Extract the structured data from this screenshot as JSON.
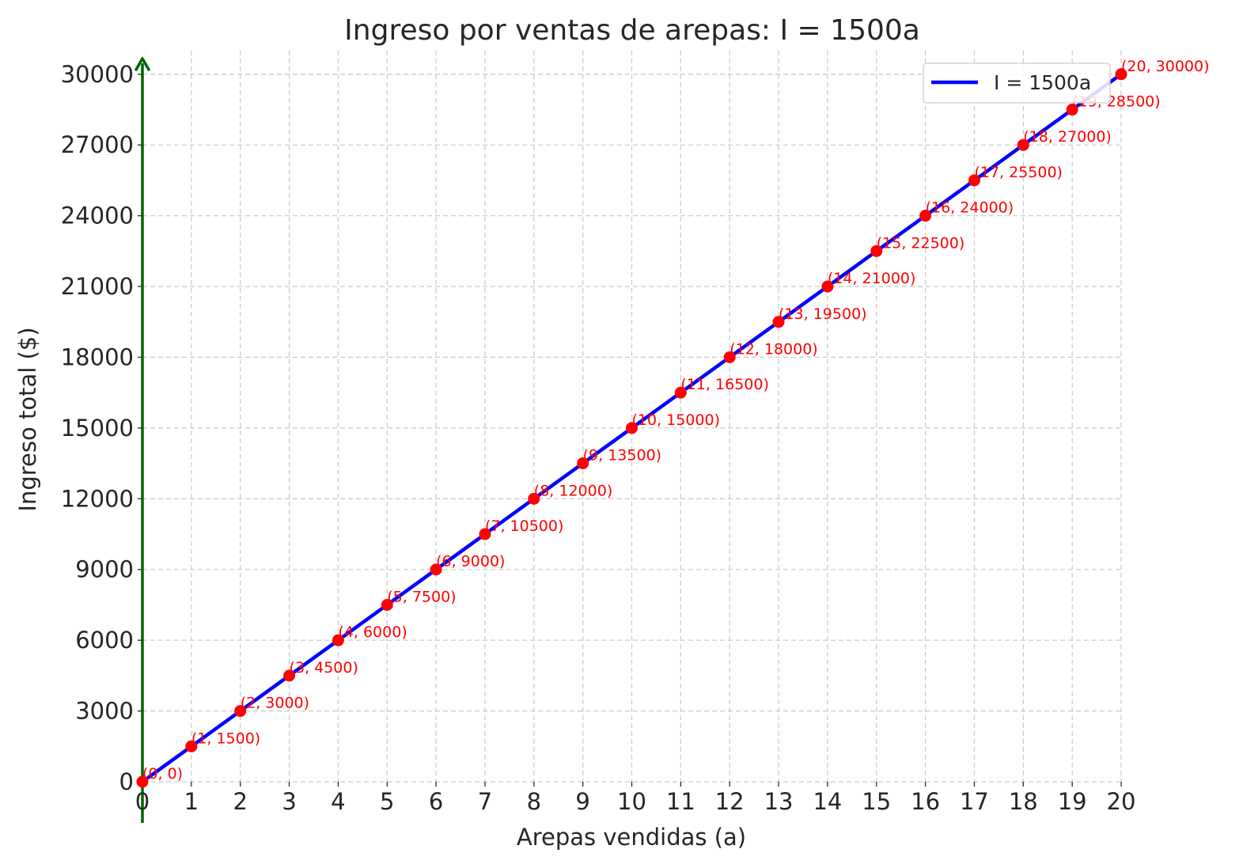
{
  "chart_data": {
    "type": "line",
    "title": "Ingreso por ventas de arepas: I = 1500a",
    "xlabel": "Arepas vendidas (a)",
    "ylabel": "Ingreso total ($)",
    "xlim": [
      0,
      20
    ],
    "ylim": [
      0,
      31000
    ],
    "xticks": [
      0,
      1,
      2,
      3,
      4,
      5,
      6,
      7,
      8,
      9,
      10,
      11,
      12,
      13,
      14,
      15,
      16,
      17,
      18,
      19,
      20
    ],
    "yticks": [
      0,
      3000,
      6000,
      9000,
      12000,
      15000,
      18000,
      21000,
      24000,
      27000,
      30000
    ],
    "grid": true,
    "legend_position": "top-right",
    "series": [
      {
        "name": "I = 1500a",
        "color": "#0000ff",
        "x": [
          0,
          1,
          2,
          3,
          4,
          5,
          6,
          7,
          8,
          9,
          10,
          11,
          12,
          13,
          14,
          15,
          16,
          17,
          18,
          19,
          20
        ],
        "y": [
          0,
          1500,
          3000,
          4500,
          6000,
          7500,
          9000,
          10500,
          12000,
          13500,
          15000,
          16500,
          18000,
          19500,
          21000,
          22500,
          24000,
          25500,
          27000,
          28500,
          30000
        ]
      }
    ],
    "markers": {
      "color": "#ff0000"
    },
    "point_labels": [
      "(0, 0)",
      "(1, 1500)",
      "(2, 3000)",
      "(3, 4500)",
      "(4, 6000)",
      "(5, 7500)",
      "(6, 9000)",
      "(7, 10500)",
      "(8, 12000)",
      "(9, 13500)",
      "(10, 15000)",
      "(11, 16500)",
      "(12, 18000)",
      "(13, 19500)",
      "(14, 21000)",
      "(15, 22500)",
      "(16, 24000)",
      "(17, 25500)",
      "(18, 27000)",
      "(19, 28500)",
      "(20, 30000)"
    ],
    "y_axis_arrow_color": "#006400"
  }
}
